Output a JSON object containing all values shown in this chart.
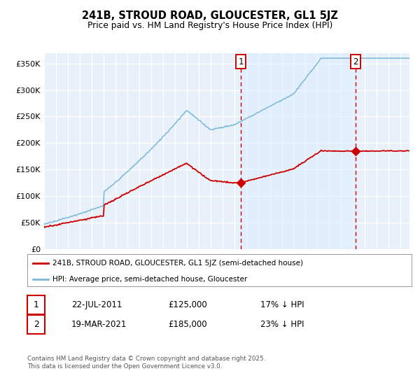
{
  "title": "241B, STROUD ROAD, GLOUCESTER, GL1 5JZ",
  "subtitle": "Price paid vs. HM Land Registry's House Price Index (HPI)",
  "legend_line1": "241B, STROUD ROAD, GLOUCESTER, GL1 5JZ (semi-detached house)",
  "legend_line2": "HPI: Average price, semi-detached house, Gloucester",
  "annotation1_label": "1",
  "annotation1_date": "22-JUL-2011",
  "annotation1_price": "£125,000",
  "annotation1_hpi": "17% ↓ HPI",
  "annotation2_label": "2",
  "annotation2_date": "19-MAR-2021",
  "annotation2_price": "£185,000",
  "annotation2_hpi": "23% ↓ HPI",
  "footer": "Contains HM Land Registry data © Crown copyright and database right 2025.\nThis data is licensed under the Open Government Licence v3.0.",
  "hpi_color": "#7ab8d9",
  "price_color": "#cc0000",
  "vline_color": "#cc0000",
  "fill_color": "#ddeeff",
  "ylim": [
    0,
    370000
  ],
  "yticks": [
    0,
    50000,
    100000,
    150000,
    200000,
    250000,
    300000,
    350000
  ],
  "ytick_labels": [
    "£0",
    "£50K",
    "£100K",
    "£150K",
    "£200K",
    "£250K",
    "£300K",
    "£350K"
  ],
  "background_color": "#e8f0fa",
  "grid_color": "#ffffff",
  "sale1_date_num": 2011.55,
  "sale1_price": 125000,
  "sale2_date_num": 2021.22,
  "sale2_price": 185000,
  "xmin": 1995,
  "xmax": 2025.75
}
